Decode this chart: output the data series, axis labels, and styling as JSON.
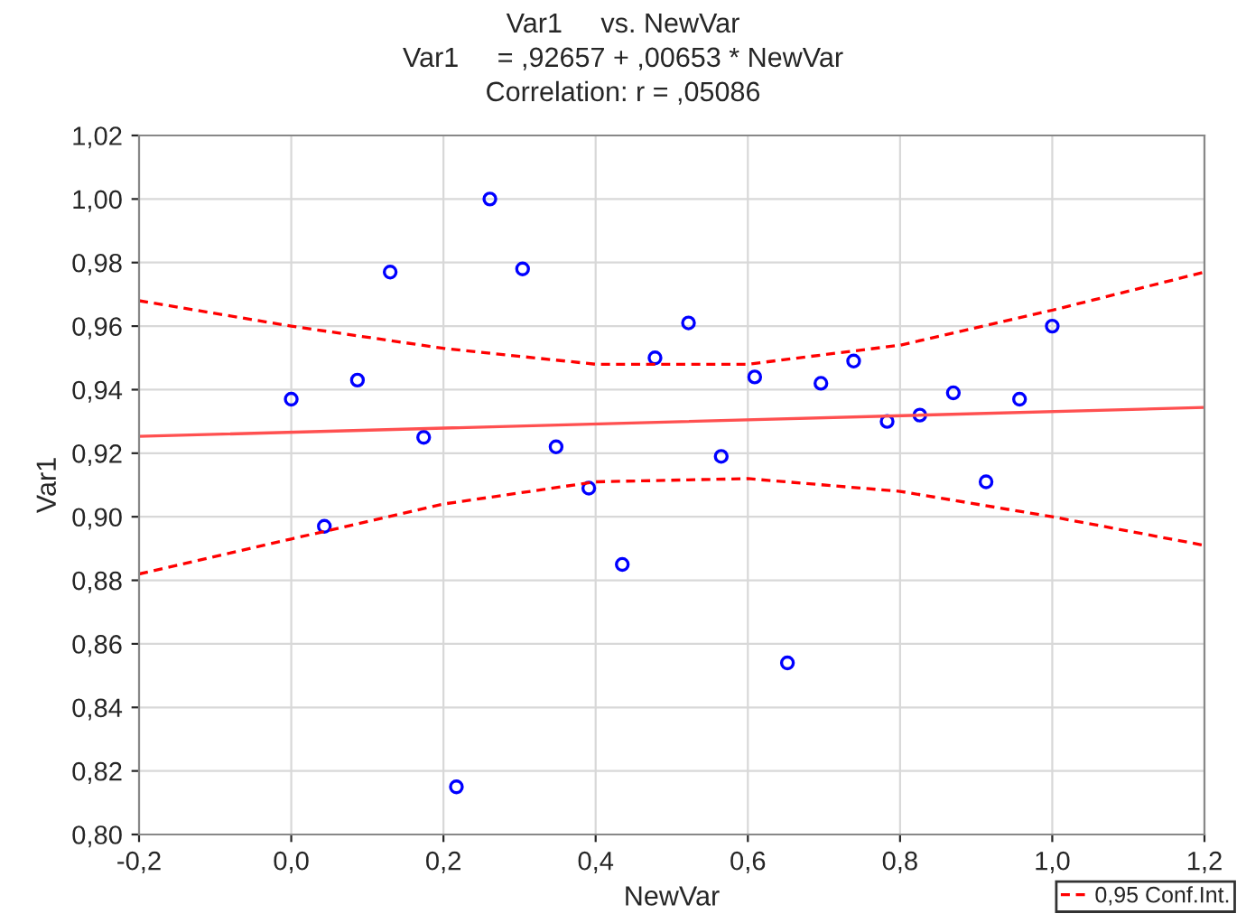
{
  "chart_data": {
    "type": "scatter",
    "title": "Var1     vs. NewVar",
    "subtitle": "Var1     = ,92657 + ,00653 * NewVar",
    "annotations": [
      "Correlation: r = ,05086"
    ],
    "xlabel": "NewVar",
    "ylabel": "Var1",
    "x": [
      0,
      0.0435,
      0.087,
      0.13,
      0.174,
      0.217,
      0.261,
      0.304,
      0.348,
      0.391,
      0.435,
      0.478,
      0.522,
      0.565,
      0.609,
      0.652,
      0.696,
      0.739,
      0.783,
      0.826,
      0.87,
      0.913,
      0.957,
      1.0
    ],
    "series": [
      {
        "color": "#0000ff",
        "marker": "circle",
        "values": [
          0.937,
          0.897,
          0.943,
          0.977,
          0.925,
          0.815,
          1.0,
          0.978,
          0.922,
          0.909,
          0.885,
          0.95,
          0.961,
          0.919,
          0.944,
          0.854,
          0.942,
          0.949,
          0.93,
          0.932,
          0.939,
          0.911,
          0.937,
          0.96
        ]
      },
      {
        "type": "line",
        "color": "#ff5050",
        "line_style": "solid",
        "marker": "none",
        "x": [
          -0.2,
          1.2
        ],
        "values": [
          0.9253,
          0.9344
        ]
      },
      {
        "type": "line",
        "name": "0,95 Conf.Int.",
        "color": "#ff0000",
        "line_style": "dashed",
        "marker": "none",
        "x": [
          -0.2,
          0,
          0.2,
          0.4,
          0.6,
          0.8,
          1.0,
          1.2
        ],
        "values": [
          0.968,
          0.96,
          0.953,
          0.948,
          0.948,
          0.954,
          0.965,
          0.977
        ]
      },
      {
        "type": "line",
        "color": "#ff0000",
        "line_style": "dashed",
        "marker": "none",
        "x": [
          -0.2,
          0,
          0.2,
          0.4,
          0.6,
          0.8,
          1.0,
          1.2
        ],
        "values": [
          0.882,
          0.893,
          0.904,
          0.911,
          0.912,
          0.908,
          0.9,
          0.891
        ]
      }
    ],
    "xlim": [
      -0.2,
      1.2
    ],
    "xticks": [
      {
        "value": -0.2,
        "label": "-0,2"
      },
      {
        "value": 0,
        "label": "0,0"
      },
      {
        "value": 0.2,
        "label": "0,2"
      },
      {
        "value": 0.4,
        "label": "0,4"
      },
      {
        "value": 0.6,
        "label": "0,6"
      },
      {
        "value": 0.8,
        "label": "0,8"
      },
      {
        "value": 1.0,
        "label": "1,0"
      },
      {
        "value": 1.2,
        "label": "1,2"
      }
    ],
    "ylim": [
      0.8,
      1.02
    ],
    "yticks": [
      {
        "value": 0.8,
        "label": "0,80"
      },
      {
        "value": 0.82,
        "label": "0,82"
      },
      {
        "value": 0.84,
        "label": "0,84"
      },
      {
        "value": 0.86,
        "label": "0,86"
      },
      {
        "value": 0.88,
        "label": "0,88"
      },
      {
        "value": 0.9,
        "label": "0,90"
      },
      {
        "value": 0.92,
        "label": "0,92"
      },
      {
        "value": 0.94,
        "label": "0,94"
      },
      {
        "value": 0.96,
        "label": "0,96"
      },
      {
        "value": 0.98,
        "label": "0,98"
      },
      {
        "value": 1.0,
        "label": "1,00"
      },
      {
        "value": 1.02,
        "label": "1,02"
      }
    ],
    "grid": true,
    "legend": "bottom right"
  }
}
